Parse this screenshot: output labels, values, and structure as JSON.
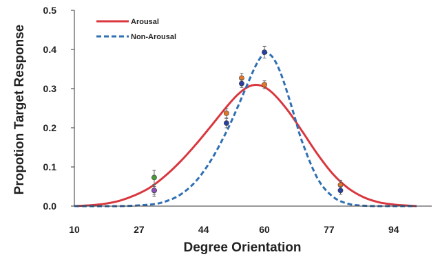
{
  "chart_data": {
    "type": "line",
    "xlabel": "Degree Orientation",
    "ylabel": "Propotion Target Response",
    "xlim": [
      10,
      104
    ],
    "ylim": [
      0,
      0.5
    ],
    "x_ticks": [
      10,
      27,
      44,
      60,
      77,
      94
    ],
    "y_ticks": [
      0.0,
      0.1,
      0.2,
      0.3,
      0.4,
      0.5
    ],
    "y_tick_labels": [
      "0.0",
      "0.1",
      "0.2",
      "0.3",
      "0.4",
      "0.5"
    ],
    "legend_position": "top-left",
    "grid": false,
    "series": [
      {
        "name": "Arousal",
        "color": "#d9363e",
        "dash": "solid",
        "x": [
          10,
          14,
          18,
          22,
          26,
          30,
          34,
          38,
          42,
          46,
          50,
          53,
          56,
          59,
          62,
          66,
          70,
          74,
          78,
          82,
          86,
          90,
          94,
          98,
          100
        ],
        "y": [
          0.0,
          0.002,
          0.006,
          0.014,
          0.028,
          0.048,
          0.078,
          0.115,
          0.158,
          0.205,
          0.253,
          0.285,
          0.306,
          0.308,
          0.29,
          0.246,
          0.19,
          0.132,
          0.082,
          0.046,
          0.023,
          0.01,
          0.004,
          0.001,
          0.0
        ]
      },
      {
        "name": "Non-Arousal",
        "color": "#2f6fb3",
        "dash": "dashed",
        "x": [
          10,
          22,
          30,
          34,
          38,
          42,
          46,
          50,
          53,
          56,
          58,
          60,
          62,
          64,
          66,
          68,
          70,
          74,
          78,
          82,
          86,
          90,
          94,
          100
        ],
        "y": [
          0.0,
          0.0,
          0.004,
          0.012,
          0.03,
          0.064,
          0.118,
          0.19,
          0.254,
          0.322,
          0.364,
          0.39,
          0.382,
          0.346,
          0.29,
          0.226,
          0.162,
          0.07,
          0.024,
          0.006,
          0.001,
          0.0,
          0.0,
          0.0
        ]
      }
    ],
    "observed_points": [
      {
        "x": 31,
        "y": 0.04,
        "err": 0.015,
        "color": "#d9363e"
      },
      {
        "x": 31,
        "y": 0.073,
        "err": 0.018,
        "color": "#4a9a3c"
      },
      {
        "x": 31,
        "y": 0.04,
        "err": 0.01,
        "color": "#8a4fb8"
      },
      {
        "x": 50,
        "y": 0.237,
        "err": 0.012,
        "color": "#e0772a"
      },
      {
        "x": 50,
        "y": 0.212,
        "err": 0.012,
        "color": "#2a3f9e"
      },
      {
        "x": 54,
        "y": 0.327,
        "err": 0.012,
        "color": "#e0772a"
      },
      {
        "x": 54,
        "y": 0.313,
        "err": 0.01,
        "color": "#2a3f9e"
      },
      {
        "x": 60,
        "y": 0.31,
        "err": 0.01,
        "color": "#e0772a"
      },
      {
        "x": 60,
        "y": 0.393,
        "err": 0.015,
        "color": "#2a3f9e"
      },
      {
        "x": 80,
        "y": 0.054,
        "err": 0.012,
        "color": "#e0772a"
      },
      {
        "x": 80,
        "y": 0.04,
        "err": 0.01,
        "color": "#2a3f9e"
      }
    ]
  }
}
